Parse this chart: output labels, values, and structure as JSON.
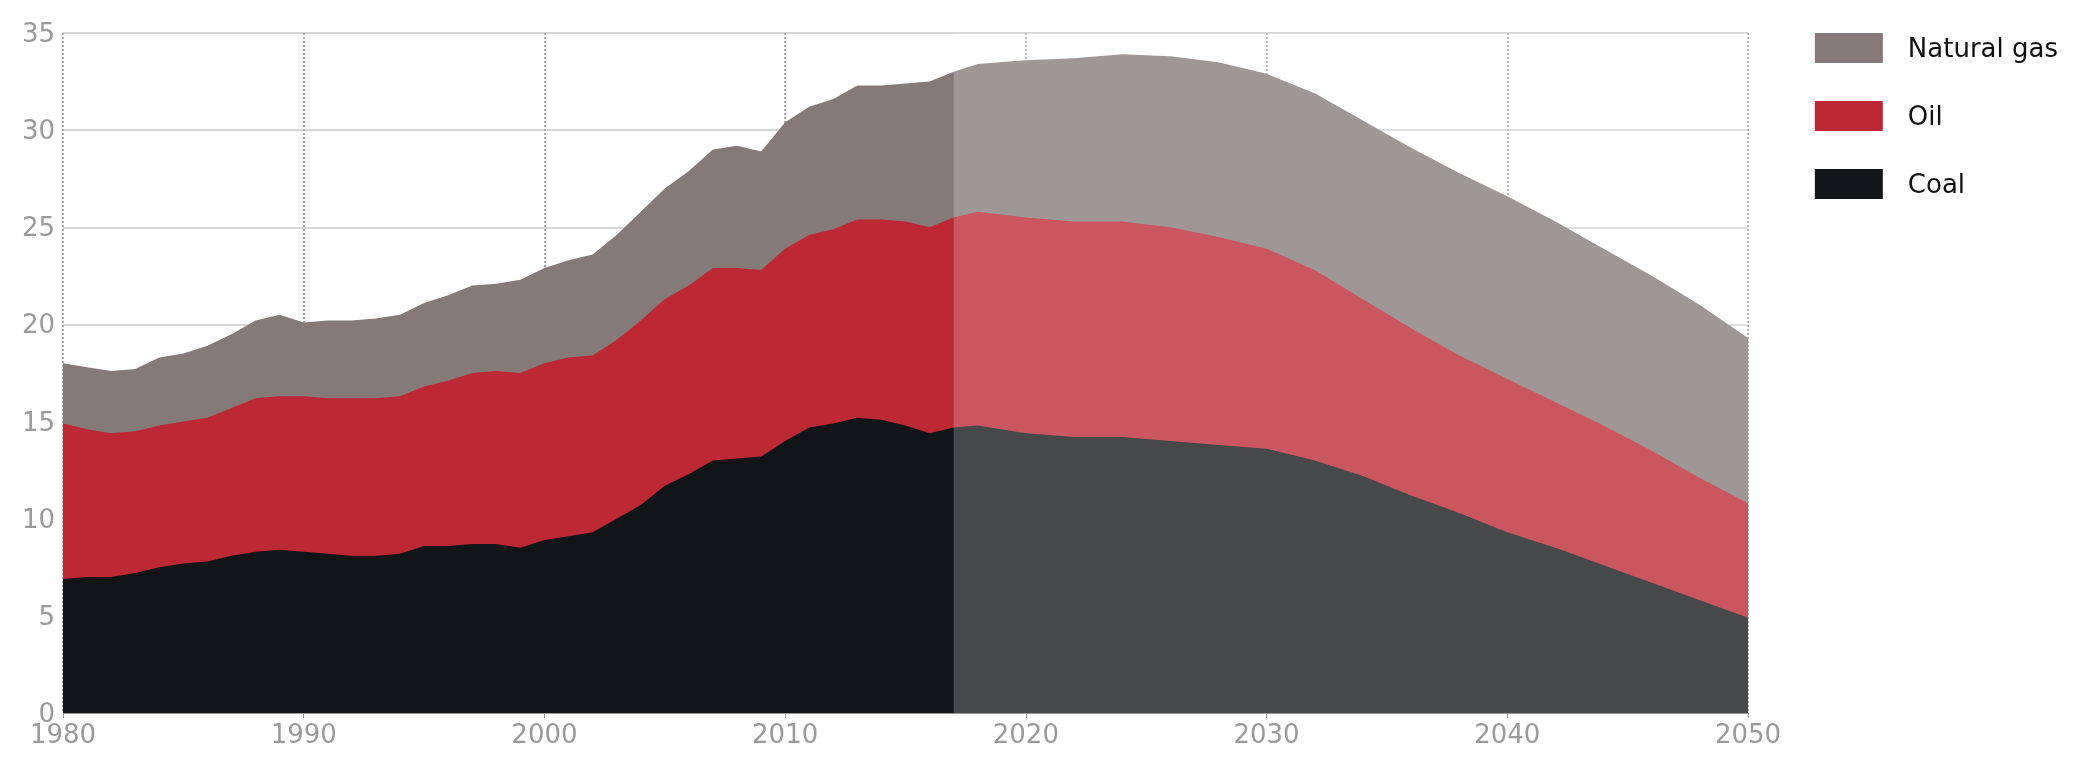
{
  "chart_data": {
    "type": "area",
    "stacked": true,
    "x": [
      1980,
      1981,
      1982,
      1983,
      1984,
      1985,
      1986,
      1987,
      1988,
      1989,
      1990,
      1991,
      1992,
      1993,
      1994,
      1995,
      1996,
      1997,
      1998,
      1999,
      2000,
      2001,
      2002,
      2003,
      2004,
      2005,
      2006,
      2007,
      2008,
      2009,
      2010,
      2011,
      2012,
      2013,
      2014,
      2015,
      2016,
      2017,
      2018,
      2020,
      2022,
      2024,
      2026,
      2028,
      2030,
      2032,
      2034,
      2036,
      2038,
      2040,
      2042,
      2044,
      2046,
      2048,
      2050
    ],
    "series": [
      {
        "name": "Coal",
        "color": "#121518",
        "values": [
          6.9,
          7.0,
          7.0,
          7.2,
          7.5,
          7.7,
          7.8,
          8.1,
          8.3,
          8.4,
          8.3,
          8.2,
          8.1,
          8.1,
          8.2,
          8.6,
          8.6,
          8.7,
          8.7,
          8.5,
          8.9,
          9.1,
          9.3,
          10.0,
          10.7,
          11.7,
          12.3,
          13.0,
          13.1,
          13.2,
          14.0,
          14.7,
          14.9,
          15.2,
          15.1,
          14.8,
          14.4,
          14.7,
          14.8,
          14.4,
          14.2,
          14.2,
          14.0,
          13.8,
          13.6,
          13.0,
          12.2,
          11.2,
          10.3,
          9.3,
          8.5,
          7.6,
          6.7,
          5.8,
          4.9
        ]
      },
      {
        "name": "Oil",
        "color": "#bc2834",
        "values": [
          8.0,
          7.6,
          7.4,
          7.3,
          7.3,
          7.3,
          7.4,
          7.6,
          7.9,
          7.9,
          8.0,
          8.0,
          8.1,
          8.1,
          8.1,
          8.2,
          8.5,
          8.8,
          8.9,
          9.0,
          9.1,
          9.2,
          9.1,
          9.2,
          9.5,
          9.6,
          9.7,
          9.9,
          9.8,
          9.6,
          9.9,
          9.9,
          10.0,
          10.2,
          10.3,
          10.5,
          10.6,
          10.8,
          11.0,
          11.1,
          11.1,
          11.1,
          11.0,
          10.7,
          10.3,
          9.8,
          9.1,
          8.6,
          8.1,
          7.9,
          7.5,
          7.2,
          6.8,
          6.3,
          5.9
        ]
      },
      {
        "name": "Natural gas",
        "color": "#857a78",
        "values": [
          3.1,
          3.2,
          3.2,
          3.2,
          3.5,
          3.5,
          3.7,
          3.8,
          4.0,
          4.2,
          3.8,
          4.0,
          4.0,
          4.1,
          4.2,
          4.3,
          4.4,
          4.5,
          4.5,
          4.8,
          4.9,
          5.0,
          5.2,
          5.4,
          5.6,
          5.7,
          5.9,
          6.1,
          6.3,
          6.1,
          6.5,
          6.6,
          6.7,
          6.9,
          6.9,
          7.1,
          7.5,
          7.5,
          7.6,
          8.1,
          8.4,
          8.6,
          8.8,
          9.0,
          9.0,
          9.1,
          9.2,
          9.3,
          9.4,
          9.4,
          9.3,
          9.1,
          9.0,
          8.9,
          8.5
        ]
      }
    ],
    "xlim": [
      1980,
      2050
    ],
    "xticks": [
      1980,
      1990,
      2000,
      2010,
      2020,
      2030,
      2040,
      2050
    ],
    "ylim": [
      0,
      35
    ],
    "yticks": [
      0,
      5,
      10,
      15,
      20,
      25,
      30,
      35
    ],
    "bands": [
      {
        "axis": "x",
        "from": 2017,
        "to": 2050,
        "color": "#ffffff"
      }
    ],
    "grid": true,
    "legend": "top right"
  }
}
